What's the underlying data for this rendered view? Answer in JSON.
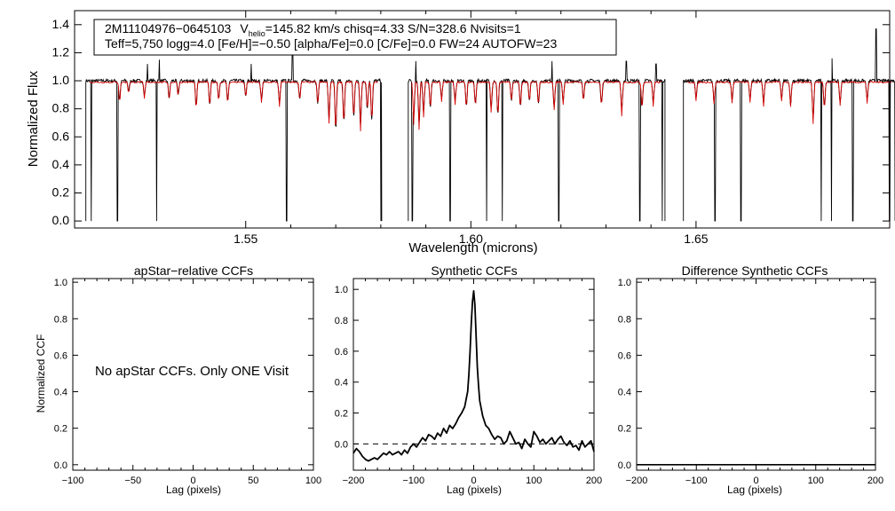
{
  "chart_data": [
    {
      "type": "line",
      "id": "spectrum",
      "xlabel": "Wavelength (microns)",
      "ylabel": "Normalized Flux",
      "xlim": [
        1.512,
        1.693
      ],
      "ylim": [
        -0.05,
        1.5
      ],
      "xticks": [
        1.55,
        1.6,
        1.65
      ],
      "xtick_labels": [
        "1.55",
        "1.60",
        "1.65"
      ],
      "yticks": [
        0.0,
        0.2,
        0.4,
        0.6,
        0.8,
        1.0,
        1.2,
        1.4
      ],
      "ytick_labels": [
        "0.0",
        "0.2",
        "0.4",
        "0.6",
        "0.8",
        "1.0",
        "1.2",
        "1.4"
      ],
      "info_box": {
        "line1_star": "2M11104976−0645103",
        "line1_v": "V",
        "line1_v_sub": "helio",
        "line1_rest": "=145.82 km/s  chisq=4.33  S/N=328.6  Nvisits=1",
        "line2": "Teff=5,750 logg=4.0 [Fe/H]=−0.50 [alpha/Fe]=0.0 [C/Fe]=0.0 FW=24 AUTOFW=23"
      },
      "chips": [
        [
          1.5145,
          1.5802
        ],
        [
          1.5861,
          1.6431
        ],
        [
          1.6472,
          1.6942
        ]
      ],
      "series": [
        {
          "color": "#000000",
          "continuum": 1.0,
          "noise": 0.012,
          "spikes": [
            [
              1.5282,
              1.12
            ],
            [
              1.5308,
              1.15
            ],
            [
              1.5512,
              1.12
            ],
            [
              1.5604,
              1.25
            ],
            [
              1.5878,
              1.14
            ],
            [
              1.618,
              1.14
            ],
            [
              1.6345,
              1.14
            ],
            [
              1.6411,
              1.12
            ],
            [
              1.6802,
              1.16
            ],
            [
              1.69,
              1.37
            ]
          ],
          "drops": [
            [
              1.5157,
              0.0
            ],
            [
              1.5215,
              0.0
            ],
            [
              1.5302,
              0.0
            ],
            [
              1.5591,
              0.0
            ],
            [
              1.58,
              0.0
            ],
            [
              1.587,
              0.0
            ],
            [
              1.5954,
              0.0
            ],
            [
              1.6035,
              0.0
            ],
            [
              1.607,
              0.0
            ],
            [
              1.6195,
              0.0
            ],
            [
              1.6375,
              0.0
            ],
            [
              1.6425,
              0.0
            ],
            [
              1.6542,
              0.0
            ],
            [
              1.66,
              0.0
            ],
            [
              1.6778,
              0.0
            ],
            [
              1.6801,
              0.0
            ],
            [
              1.6848,
              0.0
            ],
            [
              1.693,
              0.0
            ]
          ]
        },
        {
          "color": "#d40000",
          "continuum": 0.99,
          "lines": [
            [
              1.522,
              0.85
            ],
            [
              1.524,
              0.92
            ],
            [
              1.5275,
              0.88
            ],
            [
              1.533,
              0.87
            ],
            [
              1.535,
              0.9
            ],
            [
              1.539,
              0.8
            ],
            [
              1.542,
              0.82
            ],
            [
              1.544,
              0.86
            ],
            [
              1.546,
              0.84
            ],
            [
              1.55,
              0.88
            ],
            [
              1.5535,
              0.85
            ],
            [
              1.5575,
              0.82
            ],
            [
              1.562,
              0.86
            ],
            [
              1.566,
              0.83
            ],
            [
              1.5685,
              0.7
            ],
            [
              1.57,
              0.62
            ],
            [
              1.5718,
              0.68
            ],
            [
              1.574,
              0.72
            ],
            [
              1.5755,
              0.65
            ],
            [
              1.577,
              0.78
            ],
            [
              1.578,
              0.7
            ],
            [
              1.5873,
              0.7
            ],
            [
              1.5885,
              0.66
            ],
            [
              1.5895,
              0.75
            ],
            [
              1.591,
              0.8
            ],
            [
              1.5935,
              0.86
            ],
            [
              1.5965,
              0.84
            ],
            [
              1.599,
              0.8
            ],
            [
              1.601,
              0.82
            ],
            [
              1.6045,
              0.78
            ],
            [
              1.606,
              0.74
            ],
            [
              1.609,
              0.85
            ],
            [
              1.611,
              0.8
            ],
            [
              1.613,
              0.85
            ],
            [
              1.615,
              0.82
            ],
            [
              1.6185,
              0.8
            ],
            [
              1.6205,
              0.84
            ],
            [
              1.625,
              0.86
            ],
            [
              1.629,
              0.82
            ],
            [
              1.6335,
              0.76
            ],
            [
              1.638,
              0.8
            ],
            [
              1.6405,
              0.83
            ],
            [
              1.65,
              0.86
            ],
            [
              1.654,
              0.84
            ],
            [
              1.658,
              0.85
            ],
            [
              1.662,
              0.86
            ],
            [
              1.665,
              0.83
            ],
            [
              1.669,
              0.86
            ],
            [
              1.671,
              0.82
            ],
            [
              1.676,
              0.7
            ],
            [
              1.6785,
              0.8
            ],
            [
              1.682,
              0.83
            ],
            [
              1.688,
              0.85
            ]
          ]
        }
      ]
    },
    {
      "type": "line",
      "id": "apstar-ccf",
      "title": "apStar−relative CCFs",
      "xlabel": "Lag (pixels)",
      "ylabel": "Normalized CCF",
      "xlim": [
        -100,
        100
      ],
      "ylim": [
        -0.03,
        1.02
      ],
      "xticks": [
        -100,
        -50,
        0,
        50,
        100
      ],
      "xtick_labels": [
        "−100",
        "−50",
        "0",
        "50",
        "100"
      ],
      "yticks": [
        0.0,
        0.2,
        0.4,
        0.6,
        0.8,
        1.0
      ],
      "ytick_labels": [
        "0.0",
        "0.2",
        "0.4",
        "0.6",
        "0.8",
        "1.0"
      ],
      "note": "No apStar CCFs.  Only ONE Visit",
      "series": []
    },
    {
      "type": "line",
      "id": "synthetic-ccf",
      "title": "Synthetic CCFs",
      "xlabel": "Lag (pixels)",
      "ylabel": "",
      "xlim": [
        -200,
        200
      ],
      "ylim": [
        -0.17,
        1.07
      ],
      "xticks": [
        -200,
        -100,
        0,
        100,
        200
      ],
      "xtick_labels": [
        "−200",
        "−100",
        "0",
        "100",
        "200"
      ],
      "yticks": [
        0.0,
        0.2,
        0.4,
        0.6,
        0.8,
        1.0
      ],
      "ytick_labels": [
        "0.0",
        "0.2",
        "0.4",
        "0.6",
        "0.8",
        "1.0"
      ],
      "dashed_y": 0.0,
      "series": [
        {
          "color": "#000000",
          "x": [
            -200,
            -195,
            -190,
            -185,
            -180,
            -175,
            -170,
            -165,
            -160,
            -155,
            -150,
            -145,
            -140,
            -135,
            -130,
            -125,
            -120,
            -115,
            -110,
            -105,
            -100,
            -95,
            -90,
            -85,
            -80,
            -75,
            -70,
            -65,
            -60,
            -55,
            -50,
            -45,
            -40,
            -35,
            -30,
            -25,
            -20,
            -15,
            -10,
            -8,
            -6,
            -4,
            -2,
            0,
            2,
            4,
            6,
            8,
            10,
            15,
            20,
            25,
            30,
            35,
            40,
            45,
            50,
            55,
            60,
            65,
            70,
            75,
            80,
            85,
            90,
            95,
            100,
            105,
            110,
            115,
            120,
            125,
            130,
            135,
            140,
            145,
            150,
            155,
            160,
            165,
            170,
            175,
            180,
            185,
            190,
            195,
            200
          ],
          "y": [
            -0.06,
            -0.03,
            -0.05,
            -0.08,
            -0.1,
            -0.11,
            -0.1,
            -0.09,
            -0.1,
            -0.08,
            -0.06,
            -0.07,
            -0.05,
            -0.07,
            -0.06,
            -0.05,
            -0.07,
            -0.04,
            -0.06,
            -0.02,
            0.0,
            -0.02,
            0.01,
            0.04,
            0.02,
            0.06,
            0.05,
            0.03,
            0.07,
            0.05,
            0.1,
            0.07,
            0.12,
            0.1,
            0.13,
            0.17,
            0.2,
            0.24,
            0.34,
            0.45,
            0.6,
            0.78,
            0.92,
            0.99,
            0.9,
            0.7,
            0.5,
            0.38,
            0.28,
            0.18,
            0.12,
            0.1,
            0.06,
            0.03,
            0.05,
            0.04,
            0.0,
            0.02,
            0.08,
            0.04,
            0.0,
            0.01,
            -0.03,
            0.03,
            0.0,
            -0.02,
            0.08,
            0.05,
            0.01,
            0.03,
            0.0,
            0.02,
            0.04,
            0.0,
            0.03,
            0.05,
            0.01,
            -0.01,
            0.02,
            -0.02,
            -0.01,
            -0.04,
            0.02,
            -0.02,
            0.0,
            0.02,
            -0.05
          ]
        }
      ]
    },
    {
      "type": "line",
      "id": "difference-ccf",
      "title": "Difference Synthetic CCFs",
      "xlabel": "Lag (pixels)",
      "ylabel": "",
      "xlim": [
        -200,
        200
      ],
      "ylim": [
        -0.03,
        1.02
      ],
      "xticks": [
        -200,
        -100,
        0,
        100,
        200
      ],
      "xtick_labels": [
        "−200",
        "−100",
        "0",
        "100",
        "200"
      ],
      "yticks": [
        0.0,
        0.2,
        0.4,
        0.6,
        0.8,
        1.0
      ],
      "ytick_labels": [
        "0.0",
        "0.2",
        "0.4",
        "0.6",
        "0.8",
        "1.0"
      ],
      "series": [
        {
          "color": "#000000",
          "x": [
            -200,
            200
          ],
          "y": [
            0.0,
            0.0
          ]
        }
      ]
    }
  ]
}
